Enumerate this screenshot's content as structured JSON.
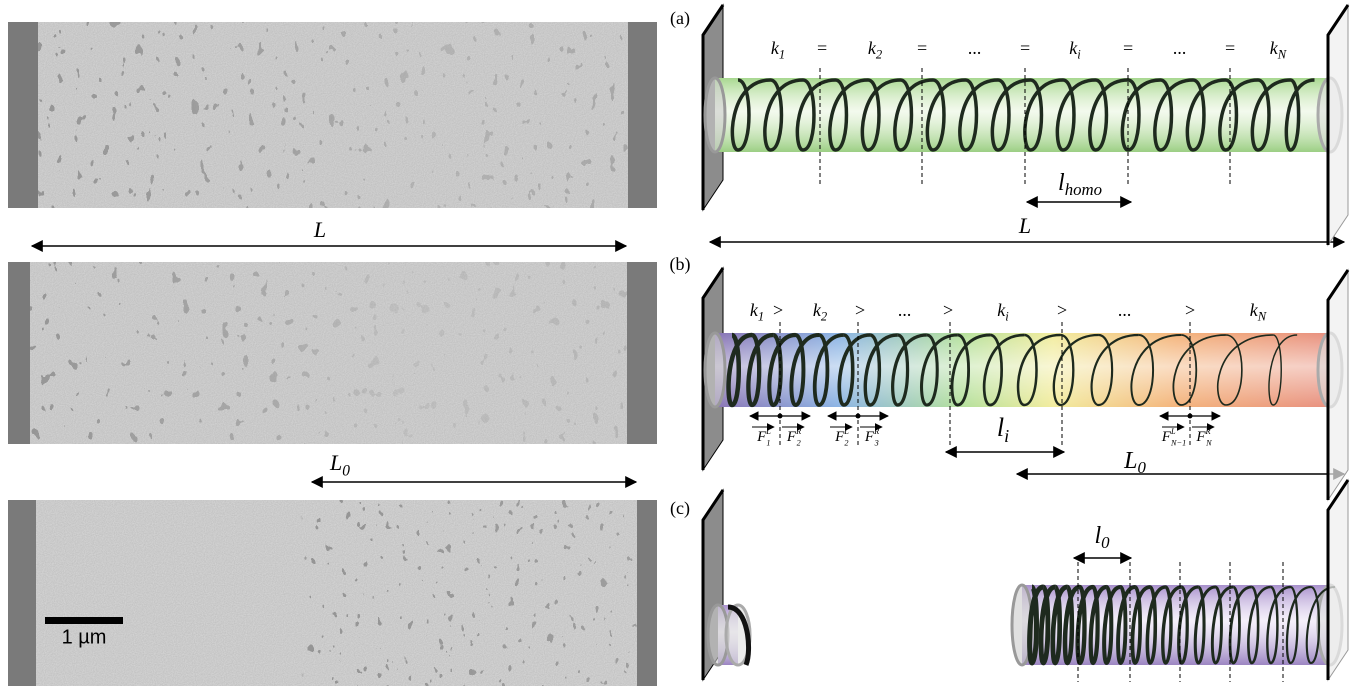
{
  "left": {
    "L": "L",
    "L0": {
      "base": "L",
      "sub": "0"
    },
    "scale_bar": "1 µm"
  },
  "panel_a": {
    "label": "(a)",
    "spring_labels": [
      {
        "base": "k",
        "sub": "1"
      },
      "=",
      {
        "base": "k",
        "sub": "2"
      },
      "=",
      "...",
      "=",
      {
        "base": "k",
        "sub": "i"
      },
      "=",
      "...",
      "=",
      {
        "base": "k",
        "sub": "N"
      }
    ],
    "segment_length": {
      "base": "l",
      "sub": "homo"
    },
    "L": "L"
  },
  "panel_b": {
    "label": "(b)",
    "spring_labels": [
      {
        "base": "k",
        "sub": "1"
      },
      ">",
      {
        "base": "k",
        "sub": "2"
      },
      ">",
      "...",
      ">",
      {
        "base": "k",
        "sub": "i"
      },
      ">",
      "...",
      ">",
      {
        "base": "k",
        "sub": "N"
      }
    ],
    "forces": [
      {
        "base": "F",
        "sup": "L",
        "sub": "1"
      },
      {
        "base": "F",
        "sup": "R",
        "sub": "2"
      },
      {
        "base": "F",
        "sup": "L",
        "sub": "2"
      },
      {
        "base": "F",
        "sup": "R",
        "sub": "3"
      },
      {
        "base": "F",
        "sup": "L",
        "sub": "N−1"
      },
      {
        "base": "F",
        "sup": "R",
        "sub": "N"
      }
    ],
    "segment_length": {
      "base": "l",
      "sub": "i"
    }
  },
  "panel_c": {
    "label": "(c)",
    "L0": {
      "base": "L",
      "sub": "0"
    },
    "segment_length": {
      "base": "l",
      "sub": "0"
    }
  }
}
